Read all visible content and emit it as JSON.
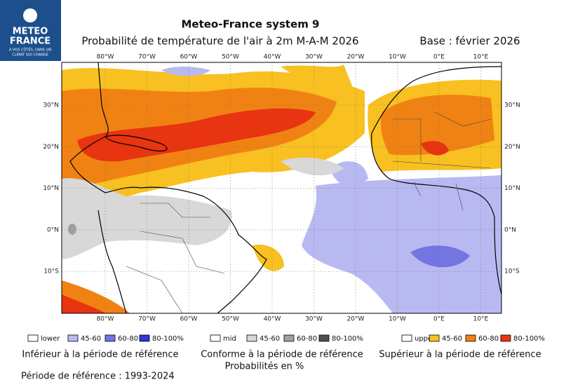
{
  "logo": {
    "lines": [
      "METEO",
      "FRANCE"
    ],
    "tagline": [
      "À VOS CÔTÉS, DANS UN",
      "CLIMAT QUI CHANGE"
    ]
  },
  "title": "Meteo-France system 9",
  "subtitle": "Probabilité de température de l'air à 2m M-A-M 2026",
  "base": "Base : février 2026",
  "map": {
    "lon_labels": [
      "80°W",
      "70°W",
      "60°W",
      "50°W",
      "40°W",
      "30°W",
      "20°W",
      "10°W",
      "0°E",
      "10°E"
    ],
    "lat_labels": [
      "30°N",
      "20°N",
      "10°N",
      "0°N",
      "10°S"
    ]
  },
  "legend": [
    {
      "items": [
        {
          "label": "lower",
          "color": "#ffffff"
        },
        {
          "label": "45-60",
          "color": "#b9b9f2"
        },
        {
          "label": "60-80",
          "color": "#7474e2"
        },
        {
          "label": "80-100%",
          "color": "#3333d4"
        }
      ],
      "caption": "Inférieur à la période de référence"
    },
    {
      "items": [
        {
          "label": "mid",
          "color": "#ffffff"
        },
        {
          "label": "45-60",
          "color": "#d8d8d8"
        },
        {
          "label": "60-80",
          "color": "#a0a0a0"
        },
        {
          "label": "80-100%",
          "color": "#505050"
        }
      ],
      "caption": "Conforme à la période de référence"
    },
    {
      "items": [
        {
          "label": "upper",
          "color": "#ffffff"
        },
        {
          "label": "45-60",
          "color": "#f8c020"
        },
        {
          "label": "60-80",
          "color": "#f08214"
        },
        {
          "label": "80-100%",
          "color": "#e83410"
        }
      ],
      "caption": "Supérieur à la période de référence"
    }
  ],
  "probability_note": "Probabilités en %",
  "reference_period": "Période de référence : 1993-2024"
}
